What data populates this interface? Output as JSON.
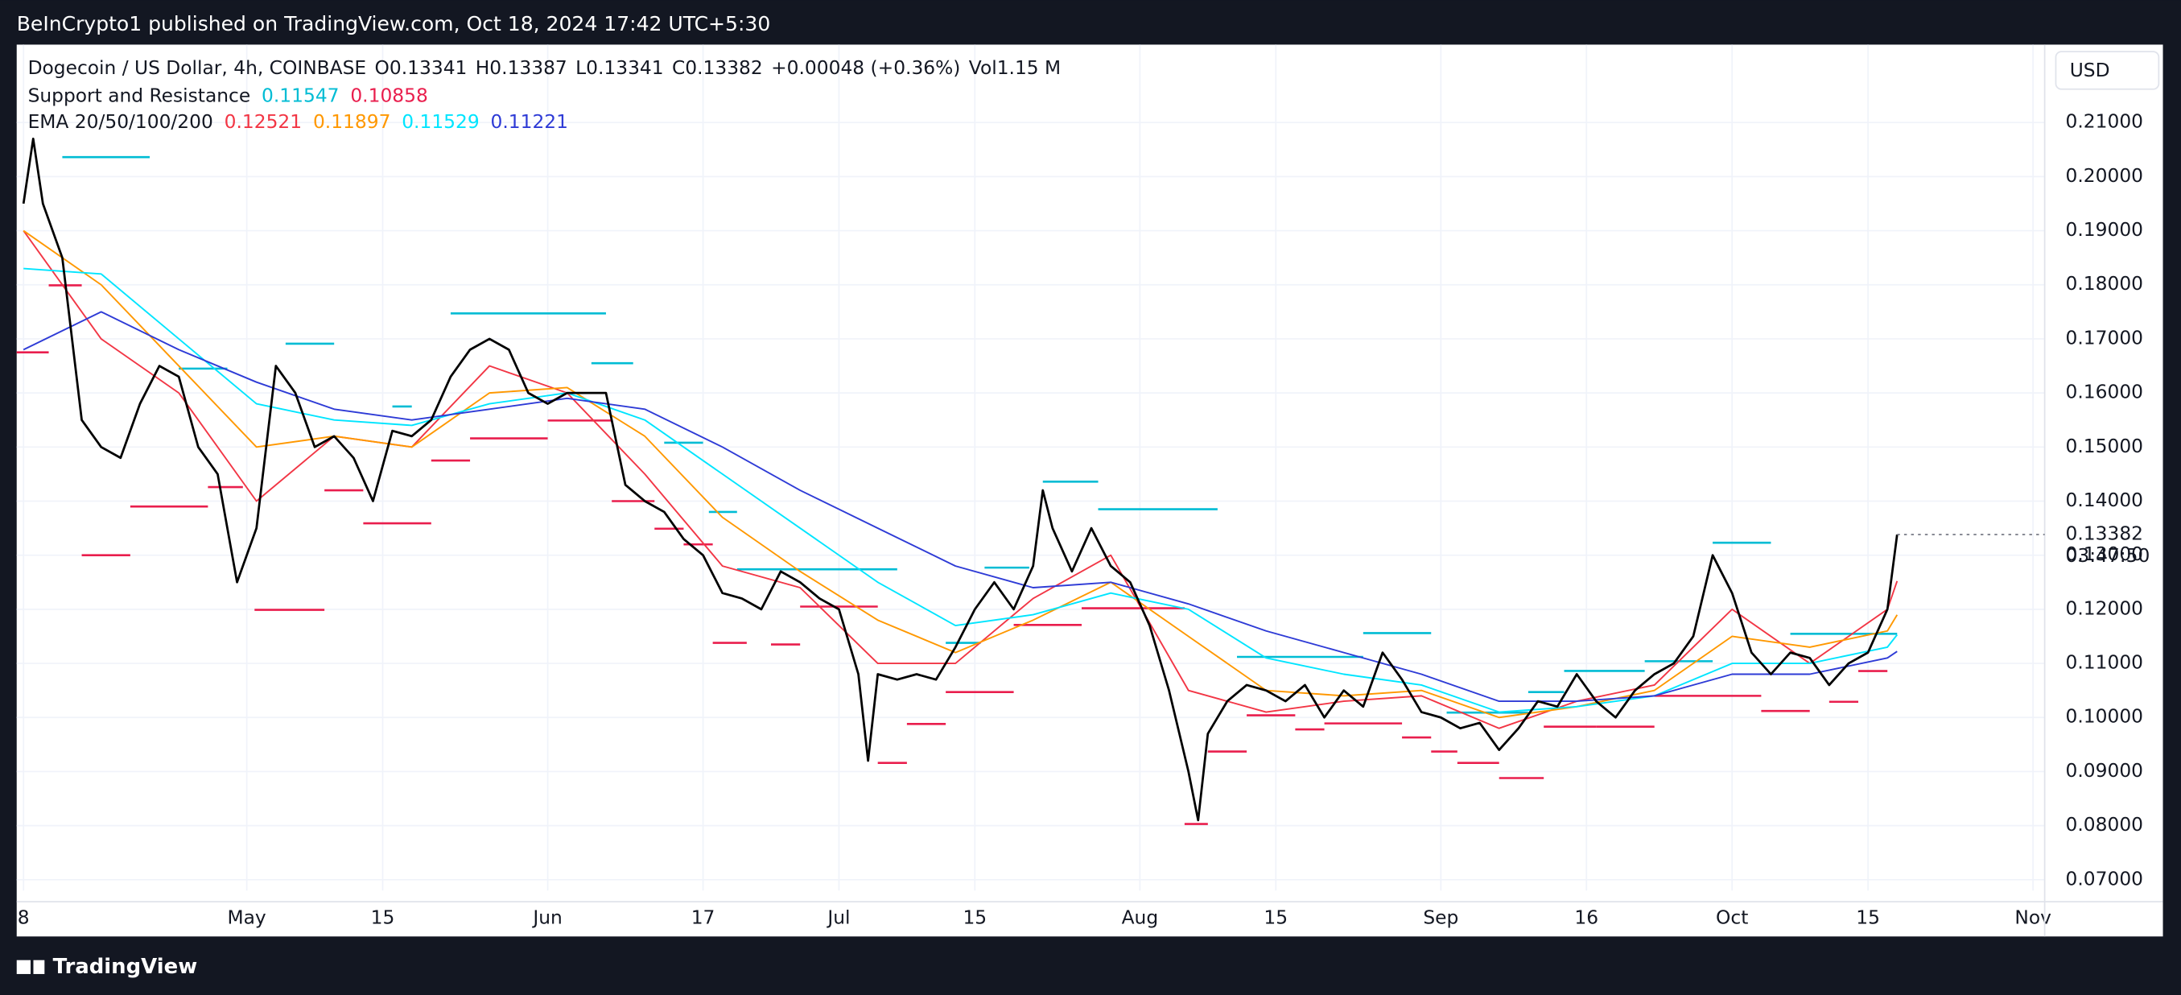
{
  "header": {
    "publisher": "BeInCrypto1 published on TradingView.com, Oct 18, 2024 17:42 UTC+5:30",
    "open": "O0.13341",
    "high": "H0.13387",
    "low": "L0.13341",
    "close": "C0.13382",
    "change": "+0.00048 (+0.36%)",
    "volume": "Vol1.15 M",
    "currency": "USD",
    "countdown": "03:47:50",
    "sr_label": "Support and Resistance",
    "ema_label": "EMA 20/50/100/200"
  },
  "footer": {
    "brand": "TradingView"
  },
  "chart_data": {
    "type": "line",
    "grid": true,
    "xlim": [
      -0.7,
      208.2
    ],
    "ylim": [
      0.068,
      0.2244
    ],
    "xticks": [
      {
        "value": 0,
        "label": "8"
      },
      {
        "value": 23,
        "label": "May"
      },
      {
        "value": 37,
        "label": "15"
      },
      {
        "value": 54,
        "label": "Jun"
      },
      {
        "value": 70,
        "label": "17"
      },
      {
        "value": 84,
        "label": "Jul"
      },
      {
        "value": 98,
        "label": "15"
      },
      {
        "value": 115,
        "label": "Aug"
      },
      {
        "value": 129,
        "label": "15"
      },
      {
        "value": 146,
        "label": "Sep"
      },
      {
        "value": 161,
        "label": "16"
      },
      {
        "value": 176,
        "label": "Oct"
      },
      {
        "value": 190,
        "label": "15"
      },
      {
        "value": 207,
        "label": "Nov"
      }
    ],
    "yticks": [
      {
        "value": 0.07,
        "label": "0.07000"
      },
      {
        "value": 0.08,
        "label": "0.08000"
      },
      {
        "value": 0.09,
        "label": "0.09000"
      },
      {
        "value": 0.1,
        "label": "0.10000"
      },
      {
        "value": 0.11,
        "label": "0.11000"
      },
      {
        "value": 0.12,
        "label": "0.12000"
      },
      {
        "value": 0.13,
        "label": "0.13000"
      },
      {
        "value": 0.14,
        "label": "0.14000"
      },
      {
        "value": 0.15,
        "label": "0.15000"
      },
      {
        "value": 0.16,
        "label": "0.16000"
      },
      {
        "value": 0.17,
        "label": "0.17000"
      },
      {
        "value": 0.18,
        "label": "0.18000"
      },
      {
        "value": 0.19,
        "label": "0.19000"
      },
      {
        "value": 0.2,
        "label": "0.20000"
      },
      {
        "value": 0.21,
        "label": "0.21000"
      }
    ],
    "series": [
      {
        "name": "Dogecoin / US Dollar, 4h, COINBASE",
        "color": "#000000",
        "x": [
          0,
          1,
          2,
          4,
          6,
          8,
          10,
          12,
          14,
          16,
          18,
          20,
          22,
          24,
          26,
          28,
          30,
          32,
          34,
          36,
          38,
          40,
          42,
          44,
          46,
          48,
          50,
          52,
          54,
          56,
          58,
          60,
          62,
          64,
          66,
          68,
          70,
          72,
          74,
          76,
          78,
          80,
          82,
          84,
          86,
          87,
          88,
          90,
          92,
          94,
          96,
          98,
          100,
          102,
          104,
          105,
          106,
          108,
          110,
          112,
          114,
          116,
          118,
          120,
          121,
          122,
          124,
          126,
          128,
          130,
          132,
          134,
          136,
          138,
          140,
          142,
          144,
          146,
          148,
          150,
          152,
          154,
          156,
          158,
          160,
          162,
          164,
          166,
          168,
          170,
          172,
          174,
          176,
          178,
          180,
          182,
          184,
          186,
          188,
          190,
          192,
          193
        ],
        "values": [
          0.195,
          0.207,
          0.195,
          0.185,
          0.155,
          0.15,
          0.148,
          0.158,
          0.165,
          0.163,
          0.15,
          0.145,
          0.125,
          0.135,
          0.165,
          0.16,
          0.15,
          0.152,
          0.148,
          0.14,
          0.153,
          0.152,
          0.155,
          0.163,
          0.168,
          0.17,
          0.168,
          0.16,
          0.158,
          0.16,
          0.16,
          0.16,
          0.143,
          0.14,
          0.138,
          0.133,
          0.13,
          0.123,
          0.122,
          0.12,
          0.127,
          0.125,
          0.122,
          0.12,
          0.108,
          0.092,
          0.108,
          0.107,
          0.108,
          0.107,
          0.113,
          0.12,
          0.125,
          0.12,
          0.128,
          0.142,
          0.135,
          0.127,
          0.135,
          0.128,
          0.125,
          0.117,
          0.105,
          0.09,
          0.081,
          0.097,
          0.103,
          0.106,
          0.105,
          0.103,
          0.106,
          0.1,
          0.105,
          0.102,
          0.112,
          0.107,
          0.101,
          0.1,
          0.098,
          0.099,
          0.094,
          0.098,
          0.103,
          0.102,
          0.108,
          0.103,
          0.1,
          0.105,
          0.108,
          0.11,
          0.115,
          0.13,
          0.123,
          0.112,
          0.108,
          0.112,
          0.111,
          0.106,
          0.11,
          0.112,
          0.12,
          0.13382
        ]
      },
      {
        "color": "#f23645",
        "x": [
          0,
          8,
          16,
          24,
          32,
          40,
          48,
          56,
          64,
          72,
          80,
          88,
          96,
          104,
          112,
          120,
          128,
          136,
          144,
          152,
          160,
          168,
          176,
          184,
          192,
          193
        ],
        "values": [
          0.19,
          0.17,
          0.16,
          0.14,
          0.152,
          0.15,
          0.165,
          0.16,
          0.145,
          0.128,
          0.124,
          0.11,
          0.11,
          0.122,
          0.13,
          0.105,
          0.101,
          0.103,
          0.104,
          0.098,
          0.103,
          0.106,
          0.12,
          0.11,
          0.12,
          0.12521
        ]
      },
      {
        "color": "#ff9800",
        "x": [
          0,
          8,
          16,
          24,
          32,
          40,
          48,
          56,
          64,
          72,
          80,
          88,
          96,
          104,
          112,
          120,
          128,
          136,
          144,
          152,
          160,
          168,
          176,
          184,
          192,
          193
        ],
        "values": [
          0.19,
          0.18,
          0.165,
          0.15,
          0.152,
          0.15,
          0.16,
          0.161,
          0.152,
          0.137,
          0.127,
          0.118,
          0.112,
          0.118,
          0.125,
          0.115,
          0.105,
          0.104,
          0.105,
          0.1,
          0.102,
          0.105,
          0.115,
          0.113,
          0.116,
          0.11897
        ]
      },
      {
        "color": "#00e5ff",
        "x": [
          0,
          8,
          16,
          24,
          32,
          40,
          48,
          56,
          64,
          72,
          80,
          88,
          96,
          104,
          112,
          120,
          128,
          136,
          144,
          152,
          160,
          168,
          176,
          184,
          192,
          193
        ],
        "values": [
          0.183,
          0.182,
          0.17,
          0.158,
          0.155,
          0.154,
          0.158,
          0.16,
          0.155,
          0.145,
          0.135,
          0.125,
          0.117,
          0.119,
          0.123,
          0.12,
          0.111,
          0.108,
          0.106,
          0.101,
          0.102,
          0.104,
          0.11,
          0.11,
          0.113,
          0.11529
        ]
      },
      {
        "color": "#2e3bd6",
        "x": [
          0,
          8,
          16,
          24,
          32,
          40,
          48,
          56,
          64,
          72,
          80,
          88,
          96,
          104,
          112,
          120,
          128,
          136,
          144,
          152,
          160,
          168,
          176,
          184,
          192,
          193
        ],
        "values": [
          0.168,
          0.175,
          0.168,
          0.162,
          0.157,
          0.155,
          0.157,
          0.159,
          0.157,
          0.15,
          0.142,
          0.135,
          0.128,
          0.124,
          0.125,
          0.121,
          0.116,
          0.112,
          0.108,
          0.103,
          0.103,
          0.104,
          0.108,
          0.108,
          0.111,
          0.11221
        ]
      }
    ],
    "resistance": {
      "color": "#00bcd4",
      "segments": [
        {
          "x": [
            4,
            13
          ],
          "value": 0.2036
        },
        {
          "x": [
            16,
            21
          ],
          "value": 0.1645
        },
        {
          "x": [
            27,
            32
          ],
          "value": 0.1691
        },
        {
          "x": [
            38,
            40
          ],
          "value": 0.1575
        },
        {
          "x": [
            44,
            60
          ],
          "value": 0.1747
        },
        {
          "x": [
            58.5,
            62.8
          ],
          "value": 0.1655
        },
        {
          "x": [
            66,
            70
          ],
          "value": 0.1508
        },
        {
          "x": [
            70.6,
            73.5
          ],
          "value": 0.138
        },
        {
          "x": [
            73.5,
            90
          ],
          "value": 0.1274
        },
        {
          "x": [
            95,
            98.6
          ],
          "value": 0.1138
        },
        {
          "x": [
            99,
            103.6
          ],
          "value": 0.1277
        },
        {
          "x": [
            105,
            110.7
          ],
          "value": 0.1436
        },
        {
          "x": [
            110.7,
            123
          ],
          "value": 0.1385
        },
        {
          "x": [
            125,
            138
          ],
          "value": 0.1112
        },
        {
          "x": [
            138,
            145
          ],
          "value": 0.1156
        },
        {
          "x": [
            146.6,
            155
          ],
          "value": 0.1009
        },
        {
          "x": [
            155,
            158.7
          ],
          "value": 0.1047
        },
        {
          "x": [
            158.7,
            167
          ],
          "value": 0.1086
        },
        {
          "x": [
            167,
            174
          ],
          "value": 0.1104
        },
        {
          "x": [
            174,
            180
          ],
          "value": 0.1323
        },
        {
          "x": [
            182,
            193
          ],
          "value": 0.11547
        }
      ]
    },
    "support": {
      "color": "#e91e4d",
      "segments": [
        {
          "x": [
            -0.7,
            2.6
          ],
          "value": 0.1675
        },
        {
          "x": [
            2.6,
            6
          ],
          "value": 0.1799
        },
        {
          "x": [
            6,
            11
          ],
          "value": 0.13
        },
        {
          "x": [
            11,
            19
          ],
          "value": 0.139
        },
        {
          "x": [
            19,
            22.6
          ],
          "value": 0.1426
        },
        {
          "x": [
            23.8,
            31
          ],
          "value": 0.1199
        },
        {
          "x": [
            31,
            35
          ],
          "value": 0.142
        },
        {
          "x": [
            35,
            42
          ],
          "value": 0.1359
        },
        {
          "x": [
            42,
            46
          ],
          "value": 0.1475
        },
        {
          "x": [
            46,
            54
          ],
          "value": 0.1516
        },
        {
          "x": [
            54,
            60.6
          ],
          "value": 0.1549
        },
        {
          "x": [
            60.6,
            65
          ],
          "value": 0.14
        },
        {
          "x": [
            65,
            68
          ],
          "value": 0.1349
        },
        {
          "x": [
            68,
            71
          ],
          "value": 0.132
        },
        {
          "x": [
            71,
            74.5
          ],
          "value": 0.1138
        },
        {
          "x": [
            77,
            80
          ],
          "value": 0.1135
        },
        {
          "x": [
            80,
            88
          ],
          "value": 0.1205
        },
        {
          "x": [
            88,
            91
          ],
          "value": 0.0916
        },
        {
          "x": [
            91,
            95
          ],
          "value": 0.0988
        },
        {
          "x": [
            95,
            102
          ],
          "value": 0.1047
        },
        {
          "x": [
            102,
            109
          ],
          "value": 0.1171
        },
        {
          "x": [
            109,
            119.6
          ],
          "value": 0.1202
        },
        {
          "x": [
            119.6,
            122
          ],
          "value": 0.0803
        },
        {
          "x": [
            122,
            126
          ],
          "value": 0.0937
        },
        {
          "x": [
            126,
            131
          ],
          "value": 0.1004
        },
        {
          "x": [
            131,
            134
          ],
          "value": 0.0978
        },
        {
          "x": [
            134,
            142
          ],
          "value": 0.0989
        },
        {
          "x": [
            142,
            145
          ],
          "value": 0.0963
        },
        {
          "x": [
            145,
            147.7
          ],
          "value": 0.0937
        },
        {
          "x": [
            147.7,
            152
          ],
          "value": 0.0916
        },
        {
          "x": [
            152,
            156.6
          ],
          "value": 0.0888
        },
        {
          "x": [
            156.6,
            162
          ],
          "value": 0.0983
        },
        {
          "x": [
            162,
            168
          ],
          "value": 0.0983
        },
        {
          "x": [
            168,
            179
          ],
          "value": 0.104
        },
        {
          "x": [
            179,
            184
          ],
          "value": 0.1012
        },
        {
          "x": [
            186,
            189
          ],
          "value": 0.1029
        },
        {
          "x": [
            189,
            192
          ],
          "value": 0.10858
        }
      ]
    }
  }
}
